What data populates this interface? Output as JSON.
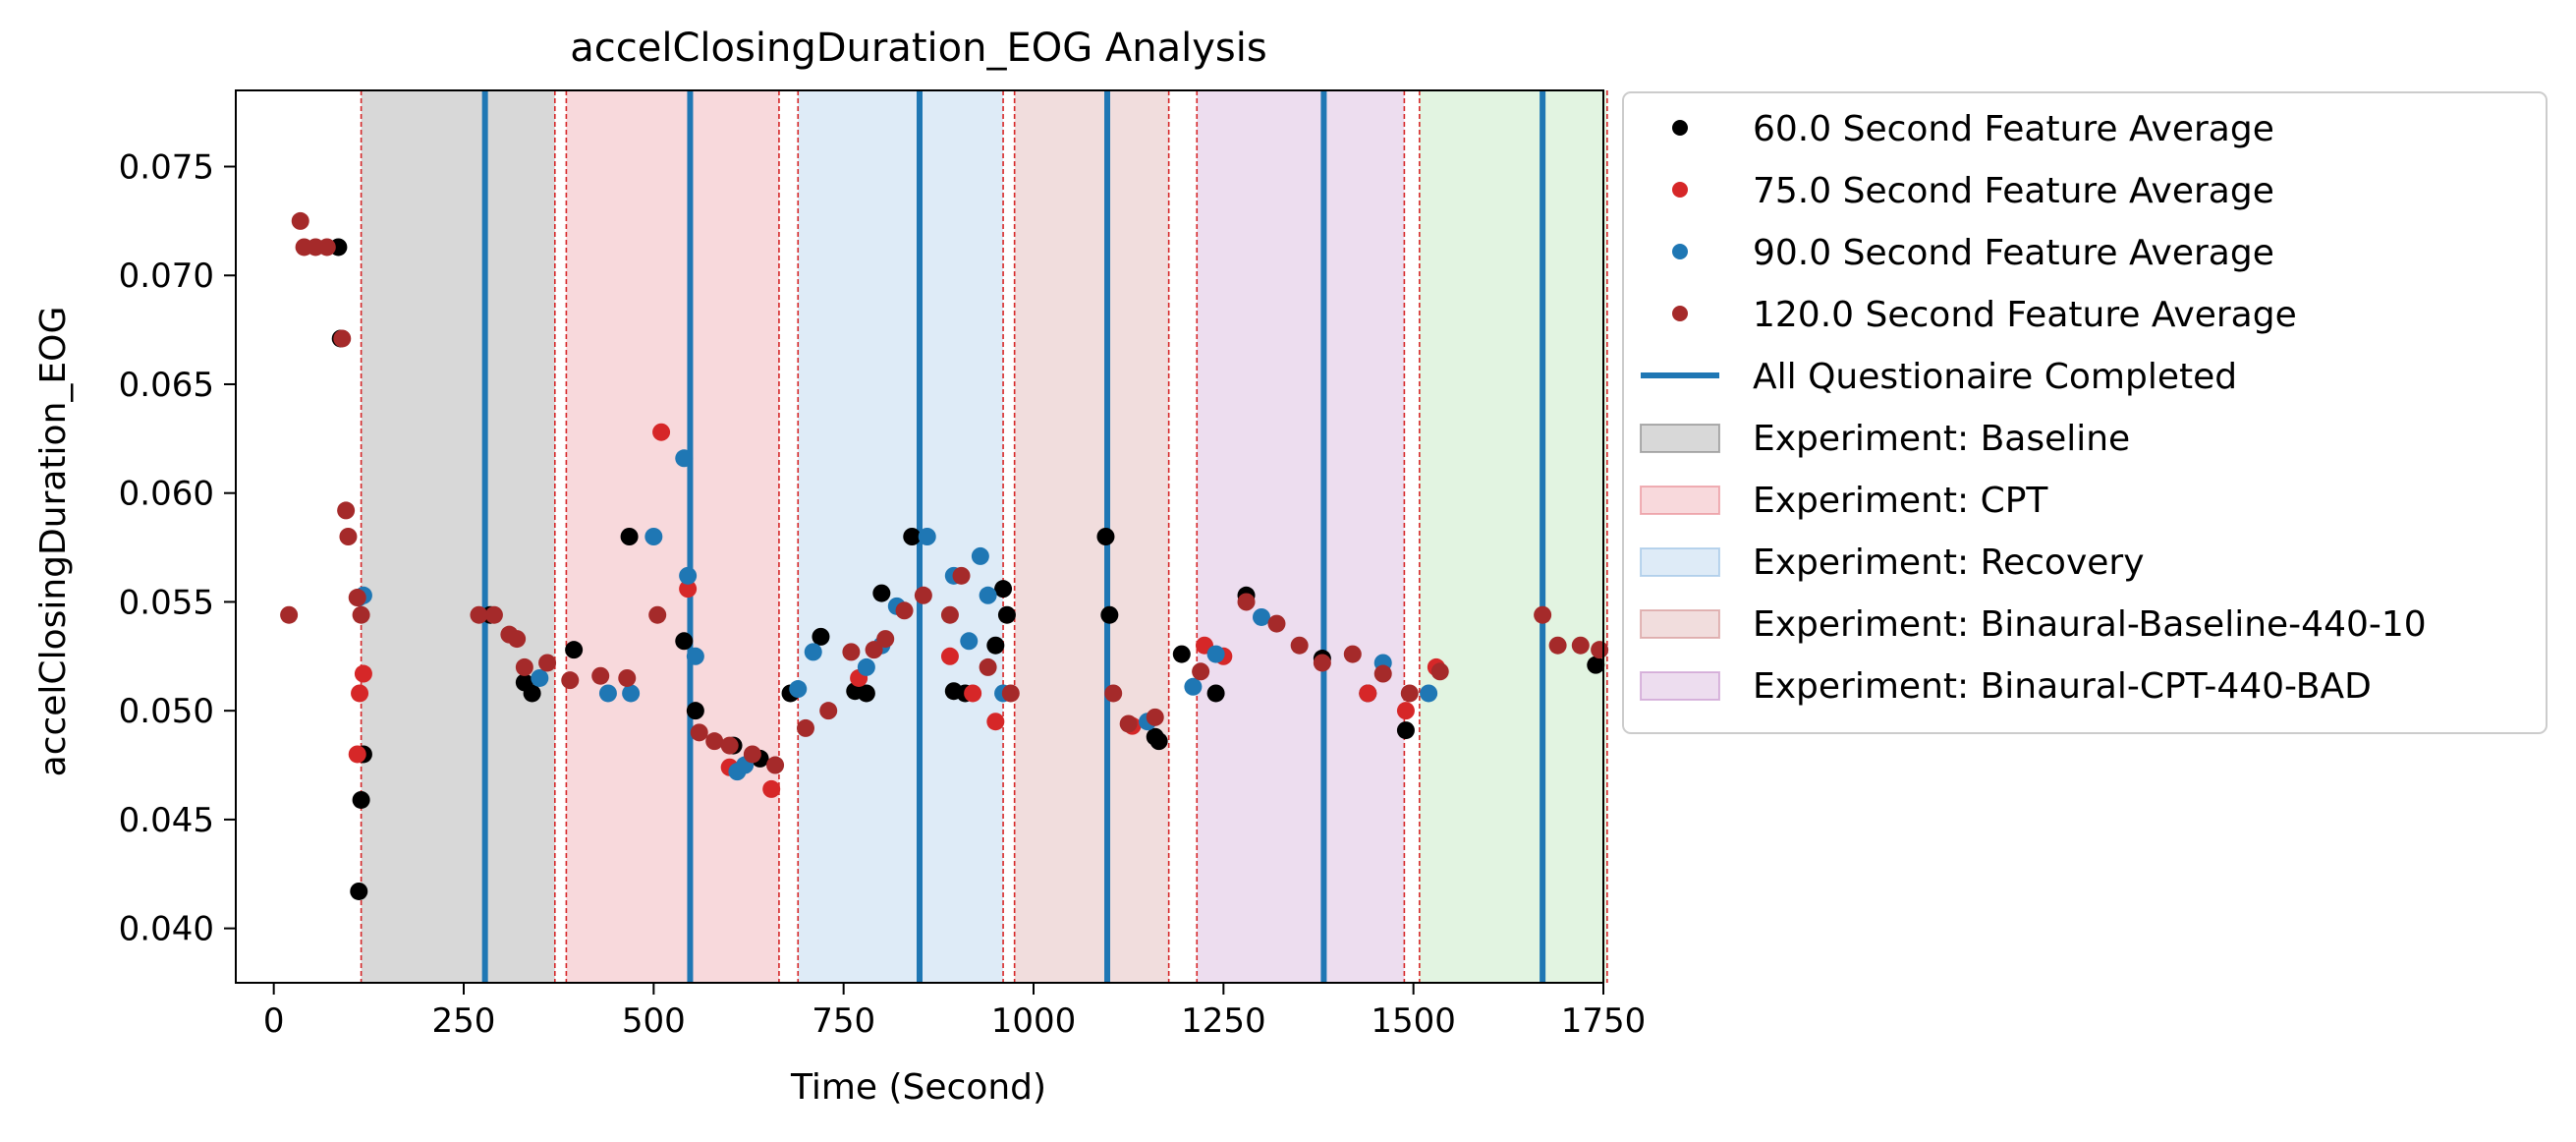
{
  "chart_data": {
    "type": "scatter",
    "title": "accelClosingDuration_EOG Analysis",
    "xlabel": "Time (Second)",
    "ylabel": "accelClosingDuration_EOG",
    "xlim": [
      -50,
      1750
    ],
    "ylim": [
      0.0375,
      0.0785
    ],
    "xticks": [
      0,
      250,
      500,
      750,
      1000,
      1250,
      1500,
      1750
    ],
    "xtick_labels": [
      "0",
      "250",
      "500",
      "750",
      "1000",
      "1250",
      "1500",
      "1750"
    ],
    "yticks": [
      0.04,
      0.045,
      0.05,
      0.055,
      0.06,
      0.065,
      0.07,
      0.075
    ],
    "ytick_labels": [
      "0.040",
      "0.045",
      "0.050",
      "0.055",
      "0.060",
      "0.065",
      "0.070",
      "0.075"
    ],
    "grid": false,
    "legend_position": "outside-right",
    "phases": [
      {
        "name": "Experiment: Baseline",
        "start": 115,
        "end": 370,
        "color": "#7f7f7f"
      },
      {
        "name": "Experiment: CPT",
        "start": 385,
        "end": 665,
        "color": "#e8828a"
      },
      {
        "name": "Experiment: Recovery",
        "start": 690,
        "end": 960,
        "color": "#92bde3"
      },
      {
        "name": "Experiment: Binaural-Baseline-440-10",
        "start": 975,
        "end": 1178,
        "color": "#d28e8e"
      },
      {
        "name": "Experiment: Binaural-CPT-440-BAD",
        "start": 1215,
        "end": 1488,
        "color": "#c38ec9"
      },
      {
        "name": "",
        "start": 1508,
        "end": 1755,
        "color": "#9fd99c"
      }
    ],
    "boundary_lines": [
      115,
      370,
      385,
      665,
      690,
      960,
      975,
      1178,
      1215,
      1488,
      1508,
      1755
    ],
    "questionnaire": {
      "name": "All Questionaire Completed",
      "color": "#1f77b4",
      "x": [
        278,
        548,
        850,
        1097,
        1382,
        1670
      ]
    },
    "series": [
      {
        "name": "60.0 Second Feature Average",
        "color": "#000000",
        "points": [
          [
            85,
            0.0713
          ],
          [
            88,
            0.0671
          ],
          [
            112,
            0.0417
          ],
          [
            115,
            0.0459
          ],
          [
            118,
            0.048
          ],
          [
            285,
            0.0544
          ],
          [
            330,
            0.0513
          ],
          [
            340,
            0.0508
          ],
          [
            395,
            0.0528
          ],
          [
            468,
            0.058
          ],
          [
            540,
            0.0532
          ],
          [
            555,
            0.05
          ],
          [
            605,
            0.0484
          ],
          [
            640,
            0.0478
          ],
          [
            680,
            0.0508
          ],
          [
            720,
            0.0534
          ],
          [
            765,
            0.0509
          ],
          [
            780,
            0.0508
          ],
          [
            800,
            0.0554
          ],
          [
            840,
            0.058
          ],
          [
            895,
            0.0509
          ],
          [
            910,
            0.0508
          ],
          [
            950,
            0.053
          ],
          [
            960,
            0.0556
          ],
          [
            965,
            0.0544
          ],
          [
            1095,
            0.058
          ],
          [
            1100,
            0.0544
          ],
          [
            1160,
            0.0488
          ],
          [
            1165,
            0.0486
          ],
          [
            1195,
            0.0526
          ],
          [
            1240,
            0.0508
          ],
          [
            1280,
            0.0553
          ],
          [
            1380,
            0.0524
          ],
          [
            1440,
            0.0508
          ],
          [
            1490,
            0.0491
          ],
          [
            1740,
            0.0521
          ]
        ]
      },
      {
        "name": "75.0 Second Feature Average",
        "color": "#d62728",
        "points": [
          [
            110,
            0.048
          ],
          [
            113,
            0.0508
          ],
          [
            118,
            0.0517
          ],
          [
            510,
            0.0628
          ],
          [
            545,
            0.0556
          ],
          [
            600,
            0.0474
          ],
          [
            655,
            0.0464
          ],
          [
            770,
            0.0515
          ],
          [
            890,
            0.0525
          ],
          [
            920,
            0.0508
          ],
          [
            950,
            0.0495
          ],
          [
            1130,
            0.0493
          ],
          [
            1225,
            0.053
          ],
          [
            1250,
            0.0525
          ],
          [
            1440,
            0.0508
          ],
          [
            1490,
            0.05
          ],
          [
            1530,
            0.052
          ]
        ]
      },
      {
        "name": "90.0 Second Feature Average",
        "color": "#1f77b4",
        "points": [
          [
            112,
            0.0552
          ],
          [
            118,
            0.0553
          ],
          [
            350,
            0.0515
          ],
          [
            440,
            0.0508
          ],
          [
            470,
            0.0508
          ],
          [
            500,
            0.058
          ],
          [
            540,
            0.0616
          ],
          [
            545,
            0.0562
          ],
          [
            555,
            0.0525
          ],
          [
            610,
            0.0472
          ],
          [
            620,
            0.0475
          ],
          [
            690,
            0.051
          ],
          [
            710,
            0.0527
          ],
          [
            780,
            0.052
          ],
          [
            800,
            0.053
          ],
          [
            820,
            0.0548
          ],
          [
            860,
            0.058
          ],
          [
            895,
            0.0562
          ],
          [
            915,
            0.0532
          ],
          [
            930,
            0.0571
          ],
          [
            940,
            0.0553
          ],
          [
            960,
            0.0508
          ],
          [
            1150,
            0.0495
          ],
          [
            1210,
            0.0511
          ],
          [
            1240,
            0.0526
          ],
          [
            1300,
            0.0543
          ],
          [
            1460,
            0.0522
          ],
          [
            1520,
            0.0508
          ]
        ]
      },
      {
        "name": "120.0 Second Feature Average",
        "color": "#a52a2a",
        "points": [
          [
            20,
            0.0544
          ],
          [
            35,
            0.0725
          ],
          [
            40,
            0.0713
          ],
          [
            55,
            0.0713
          ],
          [
            70,
            0.0713
          ],
          [
            90,
            0.0671
          ],
          [
            95,
            0.0592
          ],
          [
            98,
            0.058
          ],
          [
            110,
            0.0552
          ],
          [
            115,
            0.0544
          ],
          [
            270,
            0.0544
          ],
          [
            290,
            0.0544
          ],
          [
            310,
            0.0535
          ],
          [
            320,
            0.0533
          ],
          [
            330,
            0.052
          ],
          [
            360,
            0.0522
          ],
          [
            390,
            0.0514
          ],
          [
            430,
            0.0516
          ],
          [
            465,
            0.0515
          ],
          [
            505,
            0.0544
          ],
          [
            560,
            0.049
          ],
          [
            580,
            0.0486
          ],
          [
            600,
            0.0484
          ],
          [
            630,
            0.048
          ],
          [
            660,
            0.0475
          ],
          [
            700,
            0.0492
          ],
          [
            730,
            0.05
          ],
          [
            760,
            0.0527
          ],
          [
            790,
            0.0528
          ],
          [
            805,
            0.0533
          ],
          [
            830,
            0.0546
          ],
          [
            855,
            0.0553
          ],
          [
            890,
            0.0544
          ],
          [
            905,
            0.0562
          ],
          [
            940,
            0.052
          ],
          [
            970,
            0.0508
          ],
          [
            1105,
            0.0508
          ],
          [
            1125,
            0.0494
          ],
          [
            1160,
            0.0497
          ],
          [
            1220,
            0.0518
          ],
          [
            1280,
            0.055
          ],
          [
            1320,
            0.054
          ],
          [
            1350,
            0.053
          ],
          [
            1380,
            0.0522
          ],
          [
            1420,
            0.0526
          ],
          [
            1460,
            0.0517
          ],
          [
            1495,
            0.0508
          ],
          [
            1535,
            0.0518
          ],
          [
            1670,
            0.0544
          ],
          [
            1690,
            0.053
          ],
          [
            1720,
            0.053
          ],
          [
            1745,
            0.0528
          ]
        ]
      }
    ]
  }
}
